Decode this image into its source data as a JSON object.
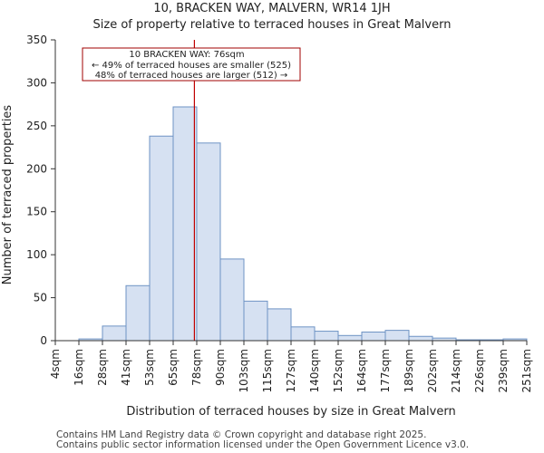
{
  "title_line1": "10, BRACKEN WAY, MALVERN, WR14 1JH",
  "title_line2": "Size of property relative to terraced houses in Great Malvern",
  "footer_line1": "Contains HM Land Registry data © Crown copyright and database right 2025.",
  "footer_line2": "Contains public sector information licensed under the Open Government Licence v3.0.",
  "colors": {
    "bar_fill": "#d6e1f2",
    "bar_stroke": "#6e93c4",
    "marker": "#c00000",
    "annotation_border": "#a00000"
  },
  "chart_data": {
    "type": "bar",
    "xlabel": "Distribution of terraced houses by size in Great Malvern",
    "ylabel": "Number of terraced properties",
    "ylim": [
      0,
      350
    ],
    "yticks": [
      0,
      50,
      100,
      150,
      200,
      250,
      300,
      350
    ],
    "bin_edges": [
      "4sqm",
      "16sqm",
      "28sqm",
      "41sqm",
      "53sqm",
      "65sqm",
      "78sqm",
      "90sqm",
      "103sqm",
      "115sqm",
      "127sqm",
      "140sqm",
      "152sqm",
      "164sqm",
      "177sqm",
      "189sqm",
      "202sqm",
      "214sqm",
      "226sqm",
      "239sqm",
      "251sqm"
    ],
    "values": [
      0,
      2,
      17,
      64,
      238,
      272,
      230,
      95,
      46,
      37,
      16,
      11,
      6,
      10,
      12,
      5,
      3,
      1,
      1,
      2
    ],
    "marker_value": 76,
    "marker_bin_position": 5.9,
    "annotation": {
      "line1": "10 BRACKEN WAY: 76sqm",
      "line2": "← 49% of terraced houses are smaller (525)",
      "line3": "48% of terraced houses are larger (512) →"
    }
  }
}
